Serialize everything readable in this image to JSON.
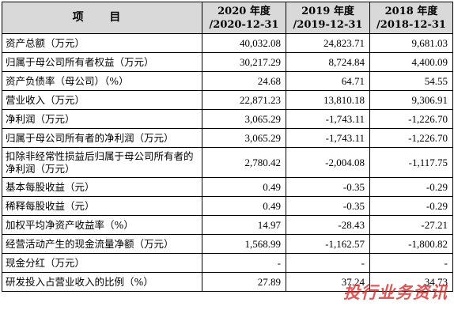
{
  "table": {
    "headers": [
      {
        "label": "项 目"
      },
      {
        "line1": "2020 年度",
        "line2": "/2020-12-31"
      },
      {
        "line1": "2019 年度",
        "line2": "/2019-12-31"
      },
      {
        "line1": "2018 年度",
        "line2": "/2018-12-31"
      }
    ],
    "rows": [
      {
        "label": "资产总额（万元）",
        "values": [
          "40,032.08",
          "24,823.71",
          "9,681.03"
        ]
      },
      {
        "label": "归属于母公司所有者权益（万元）",
        "values": [
          "30,217.29",
          "8,724.84",
          "4,400.09"
        ]
      },
      {
        "label": "资产负债率（母公司）（%）",
        "values": [
          "24.68",
          "64.71",
          "54.55"
        ]
      },
      {
        "label": "营业收入（万元）",
        "values": [
          "22,871.23",
          "13,810.18",
          "9,306.91"
        ]
      },
      {
        "label": "净利润（万元）",
        "values": [
          "3,065.29",
          "-1,743.11",
          "-1,226.70"
        ]
      },
      {
        "label": "归属于母公司所有者的净利润（万元）",
        "values": [
          "3,065.29",
          "-1,743.11",
          "-1,226.70"
        ]
      },
      {
        "label": "扣除非经常性损益后归属于母公司所有者的净利润（万元）",
        "values": [
          "2,780.42",
          "-2,004.08",
          "-1,117.75"
        ],
        "tall": true
      },
      {
        "label": "基本每股收益（元）",
        "values": [
          "0.49",
          "-0.35",
          "-0.29"
        ]
      },
      {
        "label": "稀释每股收益（元）",
        "values": [
          "0.49",
          "-0.35",
          "-0.29"
        ]
      },
      {
        "label": "加权平均净资产收益率（%）",
        "values": [
          "14.97",
          "-28.43",
          "-27.21"
        ]
      },
      {
        "label": "经营活动产生的现金流量净额（万元）",
        "values": [
          "1,568.99",
          "-1,162.57",
          "-1,800.82"
        ]
      },
      {
        "label": "现金分红（万元）",
        "values": [
          "-",
          "-",
          "-"
        ]
      },
      {
        "label": "研发投入占营业收入的比例（%）",
        "values": [
          "27.89",
          "37.24",
          "34.73"
        ]
      }
    ]
  },
  "watermark": "投行业务资讯",
  "colors": {
    "header_bg": "#d9d9d9",
    "watermark": "#d62828"
  }
}
